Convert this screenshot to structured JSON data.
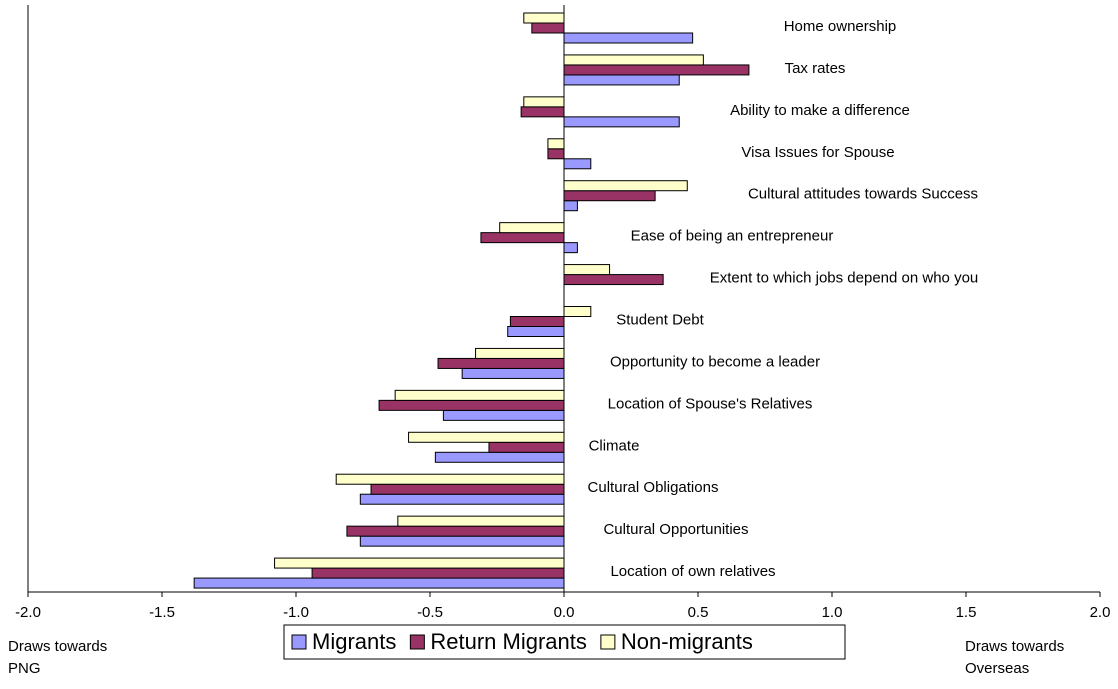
{
  "chart_data": {
    "type": "bar",
    "orientation": "horizontal",
    "categories": [
      "Home ownership",
      "Tax rates",
      "Ability to make a difference",
      "Visa Issues for Spouse",
      "Cultural attitudes towards Success",
      "Ease of being an entrepreneur",
      "Extent to which jobs depend on who you",
      "Student Debt",
      "Opportunity to become a leader",
      "Location of Spouse's Relatives",
      "Climate",
      "Cultural Obligations",
      "Cultural Opportunities",
      "Location of own relatives"
    ],
    "series": [
      {
        "name": "Migrants",
        "color": "#9999ff",
        "values": [
          0.48,
          0.43,
          0.43,
          0.1,
          0.05,
          0.05,
          0,
          -0.21,
          -0.38,
          -0.45,
          -0.48,
          -0.76,
          -0.76,
          -1.38
        ]
      },
      {
        "name": "Return Migrants",
        "color": "#993366",
        "values": [
          -0.12,
          0.69,
          -0.16,
          -0.06,
          0.34,
          -0.31,
          0.37,
          -0.2,
          -0.47,
          -0.69,
          -0.28,
          -0.72,
          -0.81,
          -0.94
        ]
      },
      {
        "name": "Non-migrants",
        "color": "#ffffcc",
        "values": [
          -0.15,
          0.52,
          -0.15,
          -0.06,
          0.46,
          -0.24,
          0.17,
          0.1,
          -0.33,
          -0.63,
          -0.58,
          -0.85,
          -0.62,
          -1.08
        ]
      }
    ],
    "xlim": [
      -2.0,
      2.0
    ],
    "xticks": [
      {
        "value": -2.0,
        "label": "-2.0"
      },
      {
        "value": -1.5,
        "label": "-1.5"
      },
      {
        "value": -1.0,
        "label": "-1.0"
      },
      {
        "value": -0.5,
        "label": "-0.5"
      },
      {
        "value": 0.0,
        "label": "0.0"
      },
      {
        "value": 0.5,
        "label": "0.5"
      },
      {
        "value": 1.0,
        "label": "1.0"
      },
      {
        "value": 1.5,
        "label": "1.5"
      },
      {
        "value": 2.0,
        "label": "2.0"
      }
    ],
    "left_label": [
      "Draws towards",
      "PNG"
    ],
    "right_label": [
      "Draws towards",
      "Overseas"
    ],
    "legend": "bottom"
  }
}
